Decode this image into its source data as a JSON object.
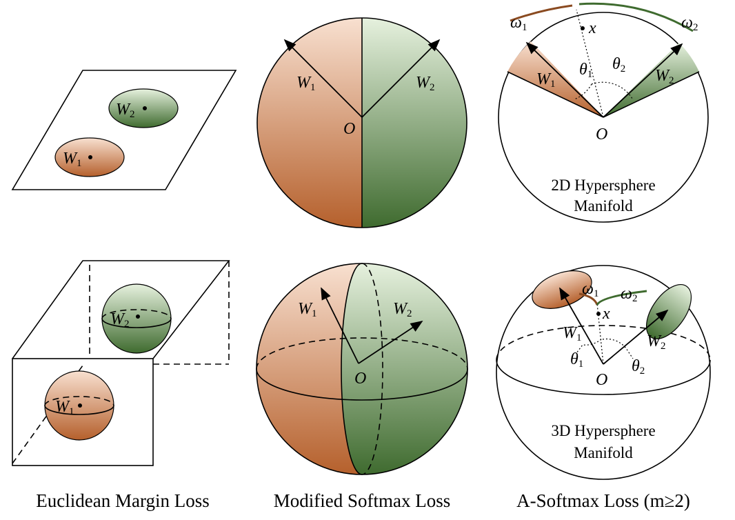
{
  "euclidean": {
    "caption": "Euclidean Margin Loss",
    "plane": {
      "w1": {
        "base": "W",
        "sub": "1"
      },
      "w2": {
        "base": "W",
        "sub": "2"
      }
    },
    "box": {
      "w1": {
        "base": "W",
        "sub": "1"
      },
      "w2": {
        "base": "W",
        "sub": "2"
      }
    }
  },
  "modified": {
    "caption": "Modified Softmax Loss",
    "circle": {
      "w1": {
        "base": "W",
        "sub": "1"
      },
      "w2": {
        "base": "W",
        "sub": "2"
      },
      "origin": "O"
    },
    "sphere": {
      "w1": {
        "base": "W",
        "sub": "1"
      },
      "w2": {
        "base": "W",
        "sub": "2"
      },
      "origin": "O"
    }
  },
  "asoftmax": {
    "caption": "A-Softmax Loss (m≥2)",
    "circle": {
      "w1": {
        "base": "W",
        "sub": "1"
      },
      "w2": {
        "base": "W",
        "sub": "2"
      },
      "origin": "O",
      "omega1": {
        "base": "ω",
        "sub": "1"
      },
      "omega2": {
        "base": "ω",
        "sub": "2"
      },
      "x": "x",
      "theta1": {
        "base": "θ",
        "sub": "1"
      },
      "theta2": {
        "base": "θ",
        "sub": "2"
      },
      "manifold": [
        "2D Hypersphere",
        "Manifold"
      ]
    },
    "sphere": {
      "w1": {
        "base": "W",
        "sub": "1"
      },
      "w2": {
        "base": "W",
        "sub": "2"
      },
      "origin": "O",
      "omega1": {
        "base": "ω",
        "sub": "1"
      },
      "omega2": {
        "base": "ω",
        "sub": "2"
      },
      "x": "x",
      "theta1": {
        "base": "θ",
        "sub": "1"
      },
      "theta2": {
        "base": "θ",
        "sub": "2"
      },
      "manifold": [
        "3D Hypersphere",
        "Manifold"
      ]
    }
  }
}
